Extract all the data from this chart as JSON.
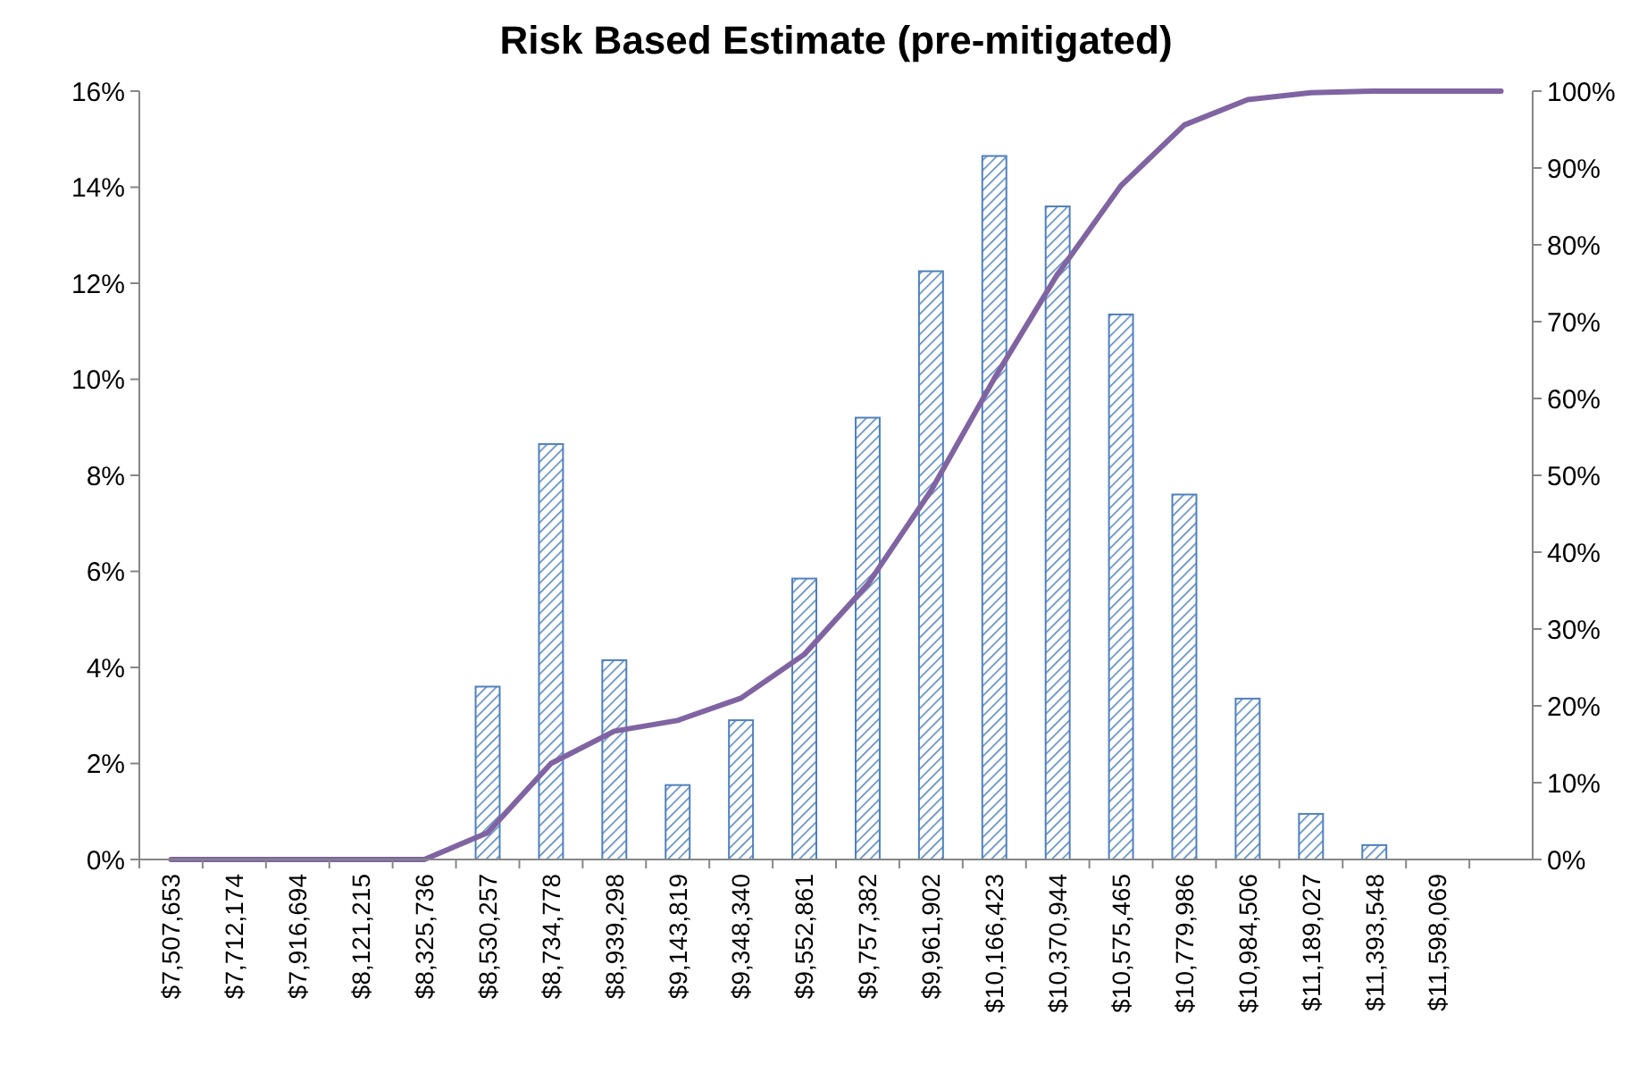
{
  "chart_data": {
    "type": "bar",
    "title": "Risk Based Estimate (pre-mitigated)",
    "categories": [
      "$7,507,653",
      "$7,712,174",
      "$7,916,694",
      "$8,121,215",
      "$8,325,736",
      "$8,530,257",
      "$8,734,778",
      "$8,939,298",
      "$9,143,819",
      "$9,348,340",
      "$9,552,861",
      "$9,757,382",
      "$9,961,902",
      "$10,166,423",
      "$10,370,944",
      "$10,575,465",
      "$10,779,986",
      "$10,984,506",
      "$11,189,027",
      "$11,393,548",
      "$11,598,069",
      null
    ],
    "series": [
      {
        "color": "#4f81bd",
        "values": [
          0,
          0,
          0,
          0,
          0,
          3.6,
          8.65,
          4.15,
          1.55,
          2.9,
          5.85,
          9.2,
          12.25,
          14.65,
          13.6,
          11.35,
          7.6,
          3.35,
          0.95,
          0.3,
          null,
          null
        ]
      },
      {
        "type": "line",
        "axis": "y2",
        "color": "#8064a2",
        "values": [
          0,
          0,
          0,
          0,
          0,
          3.5,
          12.5,
          16.7,
          18.1,
          21,
          26.7,
          35.8,
          48,
          62.6,
          76.2,
          87.7,
          95.6,
          98.9,
          99.8,
          100,
          100,
          100
        ]
      }
    ],
    "ylim": [
      0,
      16
    ],
    "yticks": [
      {
        "value": 0,
        "label": "0%"
      },
      {
        "value": 2,
        "label": "2%"
      },
      {
        "value": 4,
        "label": "4%"
      },
      {
        "value": 6,
        "label": "6%"
      },
      {
        "value": 8,
        "label": "8%"
      },
      {
        "value": 10,
        "label": "10%"
      },
      {
        "value": 12,
        "label": "12%"
      },
      {
        "value": 14,
        "label": "14%"
      },
      {
        "value": 16,
        "label": "16%"
      }
    ],
    "y2lim": [
      0,
      100
    ],
    "y2ticks": [
      {
        "value": 0,
        "label": "0%"
      },
      {
        "value": 10,
        "label": "10%"
      },
      {
        "value": 20,
        "label": "20%"
      },
      {
        "value": 30,
        "label": "30%"
      },
      {
        "value": 40,
        "label": "40%"
      },
      {
        "value": 50,
        "label": "50%"
      },
      {
        "value": 60,
        "label": "60%"
      },
      {
        "value": 70,
        "label": "70%"
      },
      {
        "value": 80,
        "label": "80%"
      },
      {
        "value": 90,
        "label": "90%"
      },
      {
        "value": 100,
        "label": "100%"
      }
    ],
    "grid": false,
    "marker": "none"
  }
}
